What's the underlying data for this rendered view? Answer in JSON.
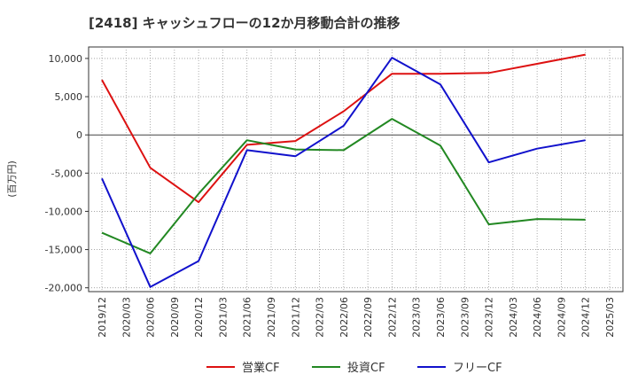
{
  "chart_data": {
    "type": "line",
    "title": "[2418]  キャッシュフローの12か月移動合計の推移",
    "ylabel": "(百万円)",
    "xlabel": "",
    "ylim": [
      -20500,
      11500
    ],
    "y_ticks": [
      10000,
      5000,
      0,
      -5000,
      -10000,
      -15000,
      -20000
    ],
    "y_tick_labels": [
      "10,000",
      "5,000",
      "0",
      "-5,000",
      "-10,000",
      "-15,000",
      "-20,000"
    ],
    "x_ticks": [
      "2019/12",
      "2020/03",
      "2020/06",
      "2020/09",
      "2020/12",
      "2021/03",
      "2021/06",
      "2021/09",
      "2021/12",
      "2022/03",
      "2022/06",
      "2022/09",
      "2022/12",
      "2023/03",
      "2023/06",
      "2023/09",
      "2023/12",
      "2024/03",
      "2024/06",
      "2024/09",
      "2024/12",
      "2025/03"
    ],
    "grid": true,
    "legend_position": "bottom",
    "series": [
      {
        "name": "営業CF",
        "color": "#dd1111",
        "x": [
          "2019/12",
          "2020/06",
          "2020/12",
          "2021/06",
          "2021/12",
          "2022/06",
          "2022/12",
          "2023/06",
          "2023/12",
          "2024/06",
          "2024/12"
        ],
        "values": [
          7200,
          -4300,
          -8800,
          -1300,
          -800,
          3100,
          8000,
          8000,
          8100,
          9300,
          10500
        ]
      },
      {
        "name": "投資CF",
        "color": "#228822",
        "x": [
          "2019/12",
          "2020/06",
          "2020/12",
          "2021/06",
          "2021/12",
          "2022/06",
          "2022/12",
          "2023/06",
          "2023/12",
          "2024/06",
          "2024/12"
        ],
        "values": [
          -12800,
          -15500,
          -7700,
          -700,
          -1900,
          -2000,
          2100,
          -1400,
          -11700,
          -11000,
          -11100
        ]
      },
      {
        "name": "フリーCF",
        "color": "#1111cc",
        "x": [
          "2019/12",
          "2020/06",
          "2020/12",
          "2021/06",
          "2021/12",
          "2022/06",
          "2022/12",
          "2023/06",
          "2023/12",
          "2024/06",
          "2024/12"
        ],
        "values": [
          -5700,
          -19900,
          -16500,
          -2000,
          -2800,
          1200,
          10100,
          6600,
          -3600,
          -1800,
          -700
        ]
      }
    ]
  }
}
